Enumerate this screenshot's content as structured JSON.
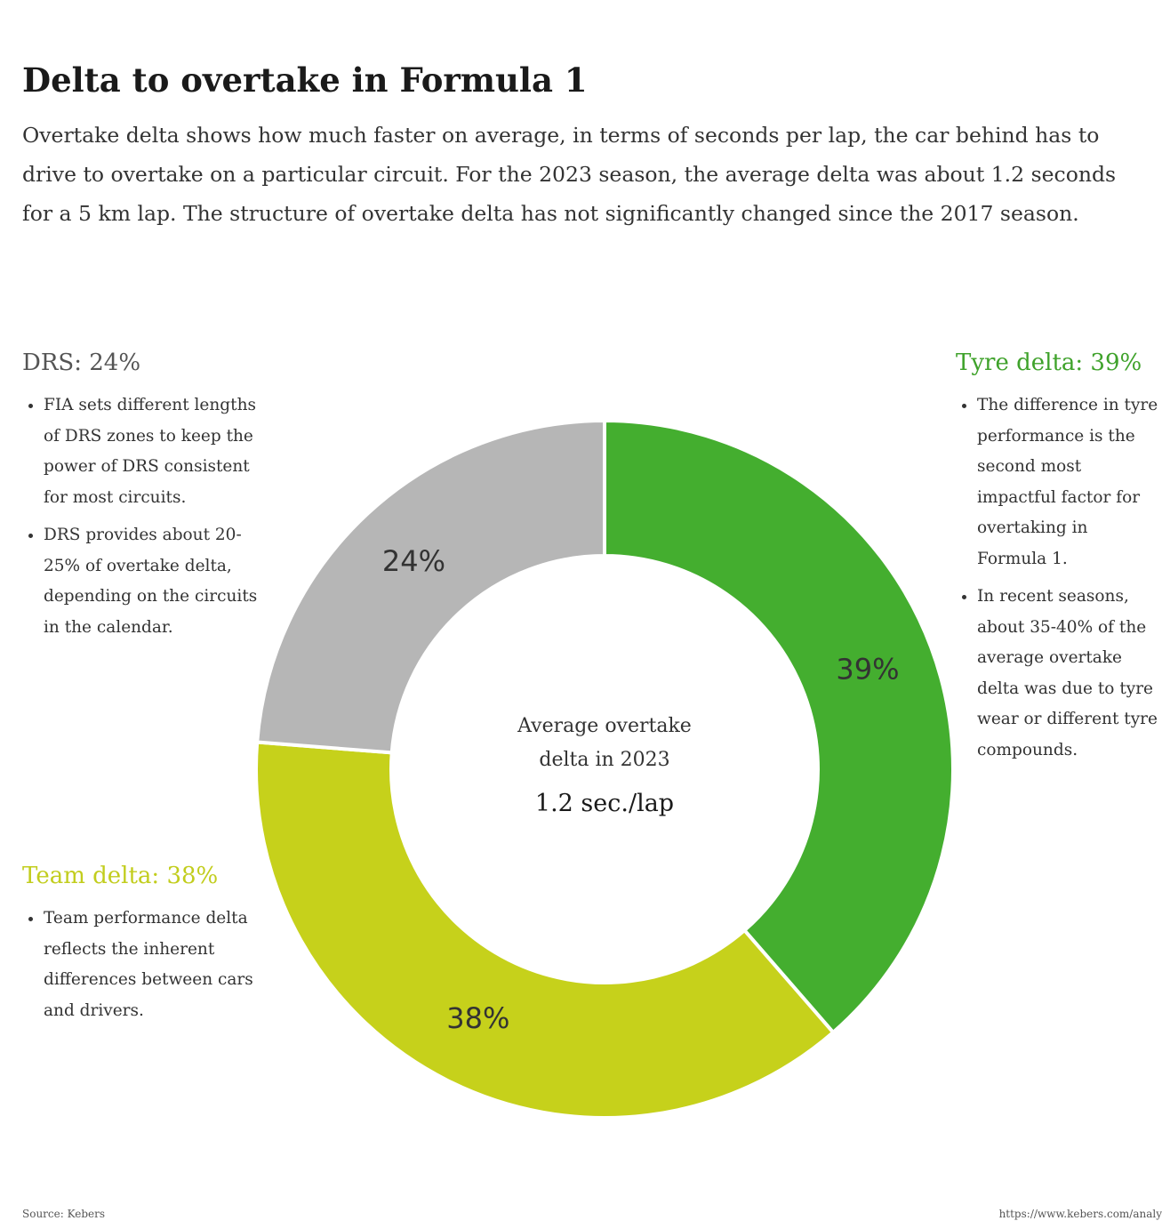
{
  "chart_data": {
    "type": "pie",
    "donut": true,
    "title": "Delta to overtake in Formula 1",
    "subtitle": "Overtake delta shows how much faster on average, in terms of seconds per lap, the car behind has to drive to overtake on a particular circuit. For the 2023 season, the average delta was about 1.2 seconds for a 5 km lap. The structure of overtake delta has not significantly changed since the 2017 season.",
    "values": [
      39,
      38,
      24
    ],
    "value_labels": [
      "39%",
      "38%",
      "24%"
    ],
    "colors": [
      "#44ae2f",
      "#c6d11b",
      "#b6b6b6"
    ],
    "center_label": "Average overtake delta in 2023",
    "center_value": "1.2 sec./lap",
    "annotations": [
      {
        "heading": "Tyre delta: 39%",
        "color": "#3fa22b",
        "bullets": [
          "The difference in tyre performance is the second most impactful factor for overtaking in Formula 1.",
          "In recent seasons, about 35-40% of the average overtake delta was due to tyre wear or different tyre compounds."
        ]
      },
      {
        "heading": "Team delta: 38%",
        "color": "#c2cd1d",
        "bullets": [
          "Team performance delta reflects the inherent differences between cars and drivers."
        ]
      },
      {
        "heading": "DRS: 24%",
        "color": "#555555",
        "bullets": [
          "FIA sets different lengths of DRS zones to keep the power of DRS consistent for most circuits.",
          "DRS provides about 20-25% of overtake delta, depending on the circuits in the calendar."
        ]
      }
    ],
    "source": "Source: Kebers",
    "url": "https://www.kebers.com/analy"
  }
}
